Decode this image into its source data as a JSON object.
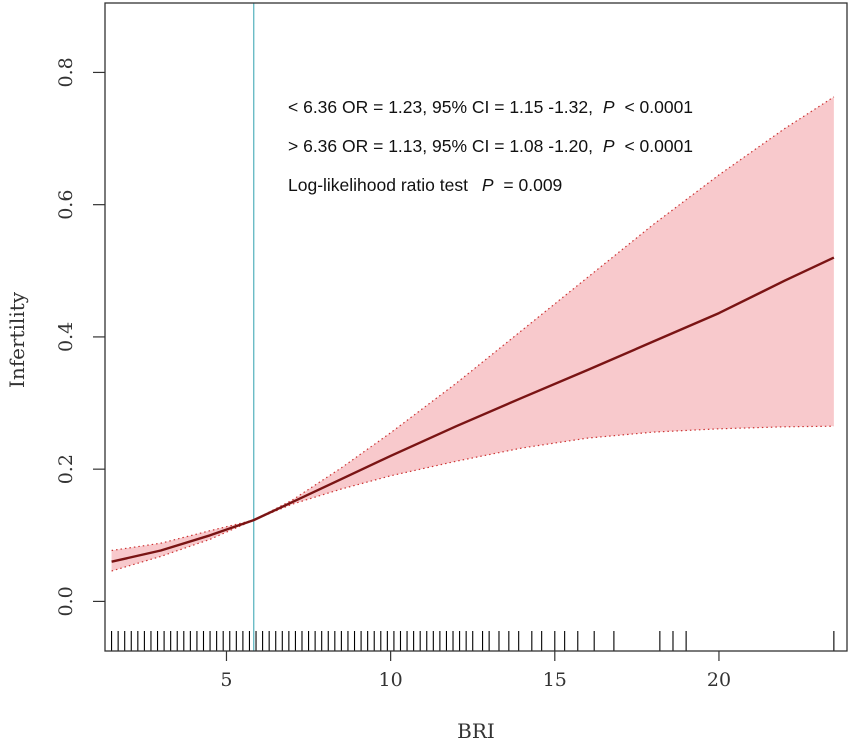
{
  "chart_data": {
    "type": "line",
    "xlabel": "BRI",
    "ylabel": "Infertility",
    "xlim": [
      1.3,
      23.9
    ],
    "ylim": [
      -0.075,
      0.905
    ],
    "x_ticks": [
      5,
      10,
      15,
      20
    ],
    "y_ticks": [
      0.0,
      0.2,
      0.4,
      0.6,
      0.8
    ],
    "x_tick_labels": [
      "5",
      "10",
      "15",
      "20"
    ],
    "y_tick_labels": [
      "0.0",
      "0.2",
      "0.4",
      "0.6",
      "0.8"
    ],
    "grid": false,
    "cutoff_line": {
      "x": 5.83,
      "color": "#5fb7c2"
    },
    "colors": {
      "line": "#7a1414",
      "band": "#f8c9cc",
      "band_edge": "#cc3333",
      "rug": "#000000",
      "frame": "#333333"
    },
    "series": [
      {
        "x": [
          1.5,
          3.0,
          4.5,
          5.83,
          7.0,
          8.5,
          10.0,
          12.0,
          14.0,
          16.0,
          18.0,
          20.0,
          22.0,
          23.5
        ],
        "y": [
          0.06,
          0.077,
          0.1,
          0.123,
          0.15,
          0.185,
          0.22,
          0.265,
          0.308,
          0.35,
          0.393,
          0.436,
          0.485,
          0.52
        ]
      }
    ],
    "band": {
      "x": [
        1.5,
        3.0,
        4.5,
        5.83,
        7.0,
        8.5,
        10.0,
        12.0,
        14.0,
        16.0,
        18.0,
        20.0,
        22.0,
        23.5
      ],
      "lower": [
        0.046,
        0.068,
        0.094,
        0.123,
        0.147,
        0.17,
        0.19,
        0.212,
        0.232,
        0.247,
        0.256,
        0.261,
        0.264,
        0.265
      ],
      "upper": [
        0.077,
        0.088,
        0.107,
        0.123,
        0.153,
        0.202,
        0.255,
        0.33,
        0.41,
        0.49,
        0.57,
        0.645,
        0.715,
        0.763
      ]
    },
    "rug": [
      1.5,
      1.7,
      1.9,
      2.1,
      2.3,
      2.5,
      2.7,
      2.9,
      3.1,
      3.3,
      3.5,
      3.7,
      3.9,
      4.1,
      4.3,
      4.5,
      4.7,
      4.9,
      5.1,
      5.3,
      5.5,
      5.7,
      5.9,
      6.1,
      6.3,
      6.5,
      6.7,
      6.9,
      7.1,
      7.3,
      7.5,
      7.7,
      7.9,
      8.1,
      8.3,
      8.5,
      8.7,
      8.9,
      9.1,
      9.3,
      9.5,
      9.7,
      9.9,
      10.1,
      10.3,
      10.5,
      10.7,
      10.9,
      11.1,
      11.3,
      11.5,
      11.7,
      11.9,
      12.1,
      12.3,
      12.5,
      12.8,
      13.0,
      13.3,
      13.6,
      13.9,
      14.3,
      14.6,
      15.0,
      15.3,
      15.7,
      16.2,
      16.8,
      18.2,
      18.6,
      19.0,
      23.5
    ],
    "annotations": [
      {
        "lead": "< 6.36 OR = 1.23, 95% CI = 1.15 -1.32,",
        "p_label": "P",
        "tail": "< 0.0001"
      },
      {
        "lead": "> 6.36 OR = 1.13, 95% CI = 1.08 -1.20,",
        "p_label": "P",
        "tail": "< 0.0001"
      },
      {
        "lead": "Log-likelihood ratio test",
        "p_label": "P",
        "tail": "= 0.009"
      }
    ]
  }
}
